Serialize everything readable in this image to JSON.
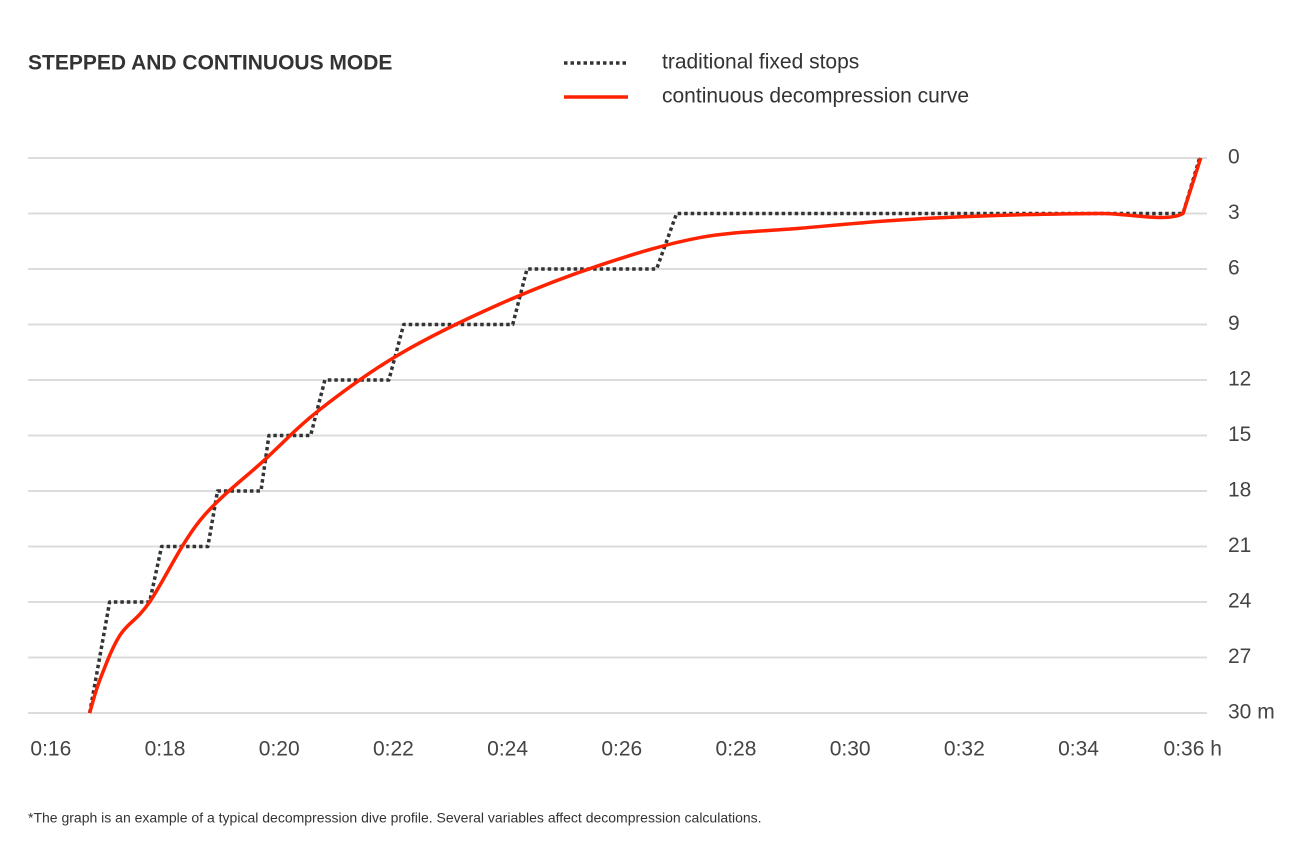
{
  "chart_data": {
    "type": "line",
    "title": "STEPPED AND CONTINUOUS MODE",
    "footnote": "*The graph is an example of a typical decompression dive profile. Several variables affect decompression calculations.",
    "xlim": [
      15.6,
      36.25
    ],
    "xticks": [
      {
        "value": 16,
        "label": "0:16"
      },
      {
        "value": 18,
        "label": "0:18"
      },
      {
        "value": 20,
        "label": "0:20"
      },
      {
        "value": 22,
        "label": "0:22"
      },
      {
        "value": 24,
        "label": "0:24"
      },
      {
        "value": 26,
        "label": "0:26"
      },
      {
        "value": 28,
        "label": "0:28"
      },
      {
        "value": 30,
        "label": "0:30"
      },
      {
        "value": 32,
        "label": "0:32"
      },
      {
        "value": 34,
        "label": "0:34"
      },
      {
        "value": 36,
        "label": "0:36 h"
      }
    ],
    "ylim": [
      30,
      0
    ],
    "yticks": [
      0,
      3,
      6,
      9,
      12,
      15,
      18,
      21,
      24,
      27,
      {
        "value": 30,
        "label": "30 m"
      }
    ],
    "grid": true,
    "series": [
      {
        "name": "traditional fixed stops",
        "color": "#333333",
        "dash": true,
        "x": [
          16.68,
          17.03,
          17.73,
          17.94,
          18.75,
          18.92,
          19.68,
          19.82,
          20.55,
          20.8,
          21.92,
          22.18,
          24.09,
          24.34,
          26.61,
          26.96,
          35.83,
          36.12
        ],
        "values": [
          30,
          24,
          24,
          21,
          21,
          18,
          18,
          15,
          15,
          12,
          12,
          9,
          9,
          6,
          6,
          3,
          3,
          0
        ]
      },
      {
        "name": "continuous decompression curve",
        "color": "#ff2200",
        "dash": false,
        "x": [
          16.68,
          16.86,
          17.21,
          17.73,
          18.61,
          19.75,
          20.71,
          22.11,
          23.86,
          25.61,
          27.37,
          29.12,
          30.87,
          32.62,
          34.37,
          35.83,
          36.14
        ],
        "values": [
          30,
          28.2,
          25.8,
          24,
          19.6,
          16.3,
          13.6,
          10.6,
          7.9,
          5.8,
          4.3,
          3.8,
          3.35,
          3.1,
          3,
          3,
          0
        ]
      }
    ]
  }
}
